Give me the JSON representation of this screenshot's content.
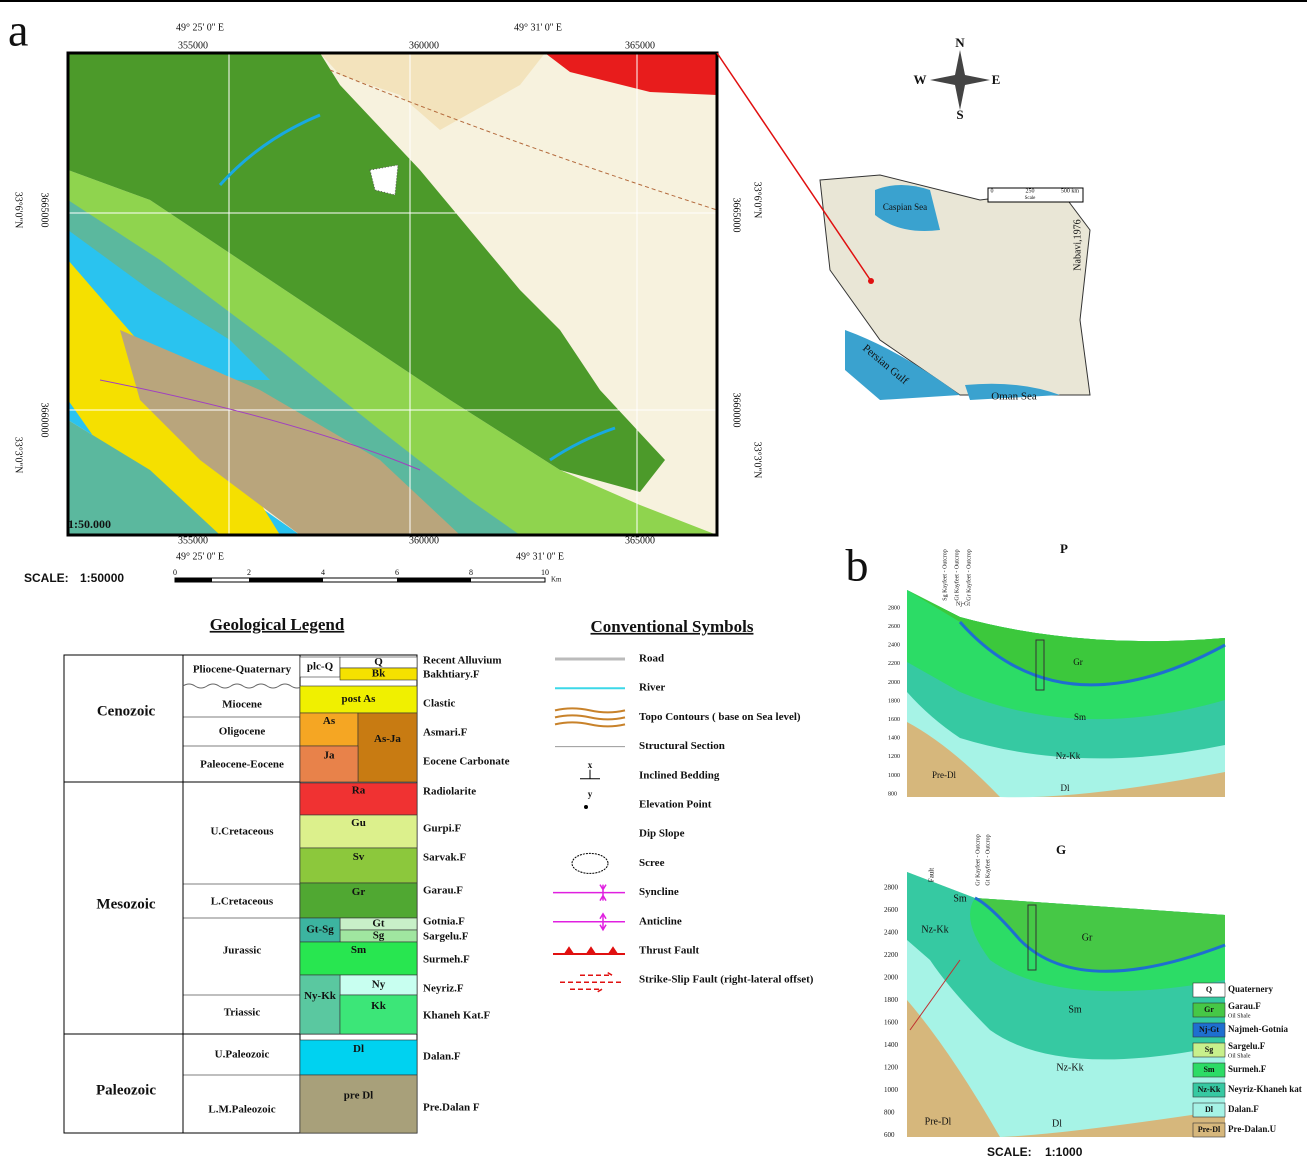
{
  "panel_a": {
    "label": "a",
    "map": {
      "top_lon": [
        "49° 25' 0'' E",
        "49° 31' 0'' E"
      ],
      "top_east": [
        "355000",
        "360000",
        "365000"
      ],
      "bottom_east": [
        "355000",
        "360000",
        "365000"
      ],
      "bottom_lon": [
        "49° 25' 0'' E",
        "49° 31' 0'' E"
      ],
      "left_lat": [
        "33°6'0''N",
        "33°3'0''N"
      ],
      "left_north": [
        "3665000",
        "3660000"
      ],
      "right_north": [
        "3665000",
        "3660000"
      ],
      "right_lat": [
        "33°6'0''N",
        "33°3'0''N"
      ],
      "scale_note": "1:50.000"
    },
    "scale": {
      "label": "SCALE:",
      "value": "1:50000",
      "ticks": [
        "0",
        "2",
        "4",
        "6",
        "8",
        "10"
      ],
      "unit": "Km"
    },
    "compass": {
      "n": "N",
      "s": "S",
      "w": "W",
      "e": "E"
    },
    "inset": {
      "caspian": "Caspian Sea",
      "gulf": "Persian Gulf",
      "oman": "Oman Sea",
      "source": "Nabavi,1976",
      "scale_ticks": [
        "0",
        "250",
        "500 km"
      ],
      "scale_label": "Scale"
    }
  },
  "geological_legend": {
    "title": "Geological Legend",
    "eras": [
      "Cenozoic",
      "Mesozoic",
      "Paleozoic"
    ],
    "periods": [
      "Pliocene-Quaternary",
      "Miocene",
      "Oligocene",
      "Paleocene-Eocene",
      "U.Cretaceous",
      "L.Cretaceous",
      "Jurassic",
      "Triassic",
      "U.Paleozoic",
      "L.M.Paleozoic"
    ],
    "units": [
      {
        "code": "plc-Q"
      },
      {
        "code": "Q",
        "name": "Recent Alluvium"
      },
      {
        "code": "Bk",
        "name": "Bakhtiary.F"
      },
      {
        "code": "post As",
        "name": "Clastic"
      },
      {
        "code": "As",
        "name": "Asmari.F"
      },
      {
        "code": "As-Ja"
      },
      {
        "code": "Ja",
        "name": "Eocene Carbonate"
      },
      {
        "code": "Ra",
        "name": "Radiolarite"
      },
      {
        "code": "Gu",
        "name": "Gurpi.F"
      },
      {
        "code": "Sv",
        "name": "Sarvak.F"
      },
      {
        "code": "Gr",
        "name": "Garau.F"
      },
      {
        "code": "Gt",
        "name": "Gotnia.F"
      },
      {
        "code": "Sg",
        "name": "Sargelu.F"
      },
      {
        "code": "Gt-Sg"
      },
      {
        "code": "Sm",
        "name": "Surmeh.F"
      },
      {
        "code": "Ny",
        "name": "Neyriz.F"
      },
      {
        "code": "Ny-Kk"
      },
      {
        "code": "Kk",
        "name": "Khaneh Kat.F"
      },
      {
        "code": "Dl",
        "name": "Dalan.F"
      },
      {
        "code": "pre Dl",
        "name": "Pre.Dalan F"
      }
    ]
  },
  "conventional_symbols": {
    "title": "Conventional Symbols",
    "items": [
      {
        "label": "Road"
      },
      {
        "label": "River"
      },
      {
        "label": "Topo Contours ( base on Sea level)"
      },
      {
        "label": "Structural Section"
      },
      {
        "label": "Inclined Bedding",
        "mark": "x"
      },
      {
        "label": "Elevation Point",
        "mark": "y"
      },
      {
        "label": "Dip Slope"
      },
      {
        "label": "Scree"
      },
      {
        "label": "Syncline"
      },
      {
        "label": "Anticline"
      },
      {
        "label": "Thrust Fault"
      },
      {
        "label": "Strike-Slip Fault (right-lateral offset)"
      }
    ]
  },
  "panel_b": {
    "label": "b",
    "section_p": {
      "title": "P",
      "yticks": [
        "2800",
        "2600",
        "2400",
        "2200",
        "2000",
        "1800",
        "1600",
        "1400",
        "1200",
        "1000",
        "800"
      ],
      "outcrops": [
        "Sg Kayfeet - Outcrop",
        "Gt Kayfeet - Outcrop",
        "Gr Kayfeet - Outcrop"
      ],
      "outcrop_code": "Nj-Gt",
      "layers": [
        "Gr",
        "Sm",
        "Nz-Kk",
        "Pre-Dl",
        "Dl"
      ]
    },
    "section_g": {
      "title": "G",
      "yticks": [
        "2800",
        "2600",
        "2400",
        "2200",
        "2000",
        "1800",
        "1600",
        "1400",
        "1200",
        "1000",
        "800",
        "600"
      ],
      "fault": "Fault",
      "outcrops": [
        "Gr Kayfeet - Outcrop",
        "Gt Kayfeet - Outcrop"
      ],
      "layers": [
        "Nz-Kk",
        "Sm",
        "Gr",
        "Sm",
        "Nz-Kk",
        "Pre-Dl",
        "Dl"
      ]
    },
    "legend": [
      {
        "code": "Q",
        "name": "Quaternery"
      },
      {
        "code": "Gr",
        "name": "Garau.F",
        "note": "Oil Shale"
      },
      {
        "code": "Nj-Gt",
        "name": "Najmeh-Gotnia"
      },
      {
        "code": "Sg",
        "name": "Sargelu.F",
        "note": "Oil Shale"
      },
      {
        "code": "Sm",
        "name": "Surmeh.F"
      },
      {
        "code": "Nz-Kk",
        "name": "Neyriz-Khaneh kat"
      },
      {
        "code": "Dl",
        "name": "Dalan.F"
      },
      {
        "code": "Pre-Dl",
        "name": "Pre-Dalan.U"
      }
    ],
    "scale": {
      "label": "SCALE:",
      "value": "1:1000"
    }
  }
}
